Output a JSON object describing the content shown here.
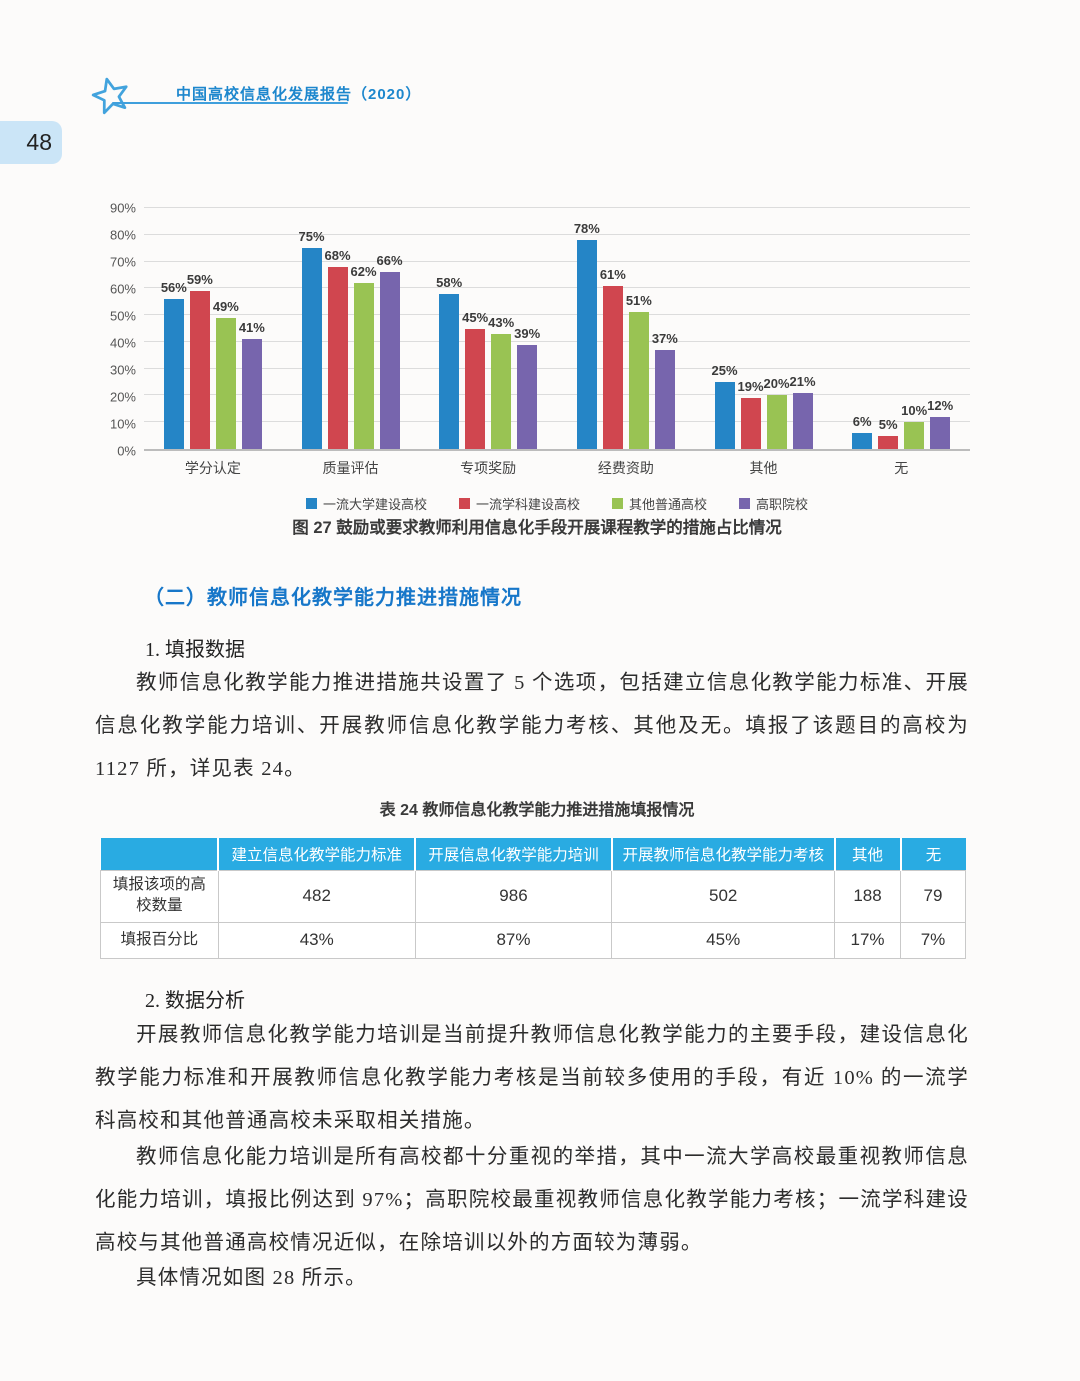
{
  "page": {
    "number": "48",
    "header_title": "中国高校信息化发展报告（2020）"
  },
  "colors": {
    "header_blue": "#1d87cd",
    "section_heading_blue": "#1777c9",
    "table_header_bg": "#29abe2",
    "badge_bg": "#cbe5f7"
  },
  "chart_data": {
    "type": "bar",
    "title": "",
    "categories": [
      "学分认定",
      "质量评估",
      "专项奖励",
      "经费资助",
      "其他",
      "无"
    ],
    "series": [
      {
        "name": "一流大学建设高校",
        "color": "#2585c6",
        "values": [
          56,
          75,
          58,
          78,
          25,
          6
        ]
      },
      {
        "name": "一流学科建设高校",
        "color": "#d0464f",
        "values": [
          59,
          68,
          45,
          61,
          19,
          5
        ]
      },
      {
        "name": "其他普通高校",
        "color": "#99c353",
        "values": [
          49,
          62,
          43,
          51,
          20,
          10
        ]
      },
      {
        "name": "高职院校",
        "color": "#7765ad",
        "values": [
          41,
          66,
          39,
          37,
          21,
          12
        ]
      }
    ],
    "ylim": [
      0,
      90
    ],
    "ytick_step": 10,
    "grid": true,
    "legend_position": "bottom",
    "value_suffix": "%",
    "xlabel": "",
    "ylabel": ""
  },
  "figure": {
    "caption": "图 27 鼓励或要求教师利用信息化手段开展课程教学的措施占比情况"
  },
  "section": {
    "heading": "（二）教师信息化教学能力推进措施情况",
    "sub1": "1. 填报数据",
    "p1": "教师信息化教学能力推进措施共设置了 5 个选项，包括建立信息化教学能力标准、开展信息化教学能力培训、开展教师信息化教学能力考核、其他及无。填报了该题目的高校为 1127 所，详见表 24。",
    "sub2": "2. 数据分析",
    "p2": "开展教师信息化教学能力培训是当前提升教师信息化教学能力的主要手段，建设信息化教学能力标准和开展教师信息化教学能力考核是当前较多使用的手段，有近 10% 的一流学科高校和其他普通高校未采取相关措施。",
    "p3": "教师信息化能力培训是所有高校都十分重视的举措，其中一流大学高校最重视教师信息化能力培训，填报比例达到 97%；高职院校最重视教师信息化教学能力考核；一流学科建设高校与其他普通高校情况近似，在除培训以外的方面较为薄弱。",
    "p4": "具体情况如图 28 所示。"
  },
  "table": {
    "title": "表 24 教师信息化教学能力推进措施填报情况",
    "col_headers": [
      "",
      "建立信息化教学能力标准",
      "开展信息化教学能力培训",
      "开展教师信息化教学能力考核",
      "其他",
      "无"
    ],
    "rows": [
      {
        "label": "填报该项的高校数量",
        "values": [
          "482",
          "986",
          "502",
          "188",
          "79"
        ]
      },
      {
        "label": "填报百分比",
        "values": [
          "43%",
          "87%",
          "45%",
          "17%",
          "7%"
        ]
      }
    ]
  }
}
